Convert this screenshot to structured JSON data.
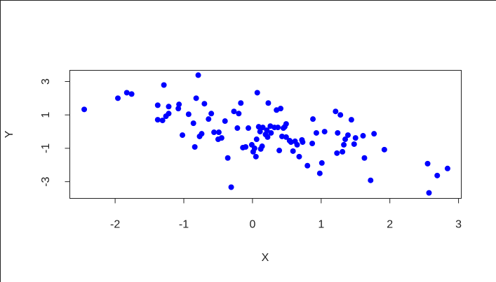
{
  "chart_data": {
    "type": "scatter",
    "x_label": "X",
    "y_label": "Y",
    "color": "#0000ff",
    "xlim": [
      -2.66,
      3.04
    ],
    "ylim": [
      -4.0,
      3.67
    ],
    "xticks": [
      -2,
      -1,
      0,
      1,
      2,
      3
    ],
    "yticks": [
      -3,
      -1,
      1,
      3
    ],
    "x": [
      -2.45,
      -1.96,
      -1.83,
      -1.76,
      -1.29,
      -1.38,
      -1.38,
      -1.31,
      -1.26,
      -1.22,
      -1.22,
      -1.08,
      -1.07,
      -1.02,
      -0.93,
      -0.86,
      -0.84,
      -0.82,
      -0.79,
      -0.77,
      -0.74,
      -0.7,
      -0.64,
      -0.6,
      -0.56,
      -0.49,
      -0.5,
      -0.45,
      -0.4,
      -0.36,
      -0.31,
      -0.27,
      -0.22,
      -0.2,
      -0.17,
      -0.14,
      -0.1,
      -0.06,
      -0.01,
      0.01,
      0.03,
      0.05,
      0.06,
      0.07,
      0.09,
      0.11,
      0.12,
      0.14,
      0.15,
      0.19,
      0.21,
      0.22,
      0.23,
      0.26,
      0.27,
      0.32,
      0.35,
      0.37,
      0.39,
      0.41,
      0.43,
      0.45,
      0.47,
      0.49,
      0.49,
      0.54,
      0.56,
      0.59,
      0.62,
      0.65,
      0.68,
      0.72,
      0.73,
      0.8,
      0.88,
      0.87,
      0.93,
      0.98,
      1.01,
      1.05,
      1.21,
      1.23,
      1.24,
      1.28,
      1.31,
      1.33,
      1.35,
      1.39,
      1.44,
      1.48,
      1.5,
      1.61,
      1.63,
      1.72,
      1.77,
      1.92,
      2.55,
      2.57,
      2.69,
      2.84
    ],
    "y": [
      1.33,
      2.0,
      2.33,
      2.25,
      2.79,
      1.58,
      0.71,
      0.67,
      0.92,
      1.08,
      1.5,
      1.38,
      1.63,
      -0.21,
      1.04,
      0.5,
      -0.92,
      2.0,
      3.38,
      -0.29,
      -0.13,
      1.67,
      0.75,
      1.08,
      -0.04,
      -0.04,
      -0.46,
      -0.38,
      0.63,
      -1.58,
      -3.33,
      1.21,
      0.21,
      1.08,
      1.71,
      -0.96,
      -0.92,
      0.21,
      -0.79,
      -1.21,
      -1.0,
      -1.5,
      -0.46,
      2.33,
      0.29,
      0.0,
      -1.04,
      -0.88,
      0.25,
      -0.17,
      0.08,
      -0.33,
      1.71,
      0.33,
      -0.08,
      0.25,
      1.29,
      0.25,
      -1.13,
      1.38,
      -0.29,
      0.21,
      0.29,
      0.46,
      -0.33,
      -0.54,
      -0.63,
      -1.17,
      -0.58,
      -0.79,
      -1.5,
      -0.5,
      -0.63,
      -2.04,
      0.75,
      -0.71,
      -0.08,
      -2.5,
      -1.88,
      0.0,
      1.21,
      -1.29,
      -0.08,
      1.0,
      -1.21,
      -0.79,
      -0.46,
      -0.21,
      0.71,
      -0.75,
      -0.38,
      -0.25,
      -1.58,
      -2.92,
      -0.13,
      -1.08,
      -1.92,
      -3.67,
      -2.63,
      -2.21
    ]
  }
}
